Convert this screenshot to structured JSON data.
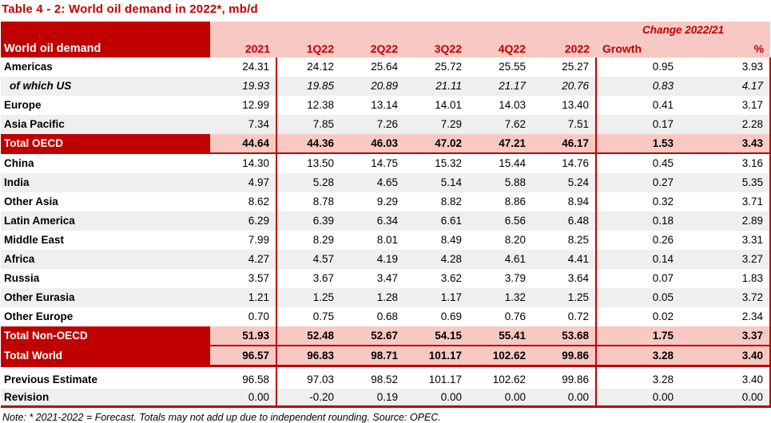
{
  "title": "Table 4 - 2: World oil demand in 2022*, mb/d",
  "table": {
    "corner_label": "World oil demand",
    "change_group_label": "Change 2022/21",
    "columns": [
      "2021",
      "1Q22",
      "2Q22",
      "3Q22",
      "4Q22",
      "2022",
      "Growth",
      "%"
    ],
    "rows": [
      {
        "label": "Americas",
        "style": "region",
        "bg": "",
        "values": [
          "24.31",
          "24.12",
          "25.64",
          "25.72",
          "25.55",
          "25.27",
          "0.95",
          "3.93"
        ]
      },
      {
        "label": "of which US",
        "style": "sub",
        "bg": "gray",
        "values": [
          "19.93",
          "19.85",
          "20.89",
          "21.11",
          "21.17",
          "20.76",
          "0.83",
          "4.17"
        ]
      },
      {
        "label": "Europe",
        "style": "region",
        "bg": "",
        "values": [
          "12.99",
          "12.38",
          "13.14",
          "14.01",
          "14.03",
          "13.40",
          "0.41",
          "3.17"
        ]
      },
      {
        "label": "Asia Pacific",
        "style": "region",
        "bg": "gray",
        "values": [
          "7.34",
          "7.85",
          "7.26",
          "7.29",
          "7.62",
          "7.51",
          "0.17",
          "2.28"
        ]
      },
      {
        "label": "Total OECD",
        "style": "total",
        "bg": "",
        "values": [
          "44.64",
          "44.36",
          "46.03",
          "47.02",
          "47.21",
          "46.17",
          "1.53",
          "3.43"
        ]
      },
      {
        "label": "China",
        "style": "region",
        "bg": "",
        "values": [
          "14.30",
          "13.50",
          "14.75",
          "15.32",
          "15.44",
          "14.76",
          "0.45",
          "3.16"
        ]
      },
      {
        "label": "India",
        "style": "region",
        "bg": "gray",
        "values": [
          "4.97",
          "5.28",
          "4.65",
          "5.14",
          "5.88",
          "5.24",
          "0.27",
          "5.35"
        ]
      },
      {
        "label": "Other Asia",
        "style": "region",
        "bg": "",
        "values": [
          "8.62",
          "8.78",
          "9.29",
          "8.82",
          "8.86",
          "8.94",
          "0.32",
          "3.71"
        ]
      },
      {
        "label": "Latin America",
        "style": "region",
        "bg": "gray",
        "values": [
          "6.29",
          "6.39",
          "6.34",
          "6.61",
          "6.56",
          "6.48",
          "0.18",
          "2.89"
        ]
      },
      {
        "label": "Middle East",
        "style": "region",
        "bg": "",
        "values": [
          "7.99",
          "8.29",
          "8.01",
          "8.49",
          "8.20",
          "8.25",
          "0.26",
          "3.31"
        ]
      },
      {
        "label": "Africa",
        "style": "region",
        "bg": "gray",
        "values": [
          "4.27",
          "4.57",
          "4.19",
          "4.28",
          "4.61",
          "4.41",
          "0.14",
          "3.27"
        ]
      },
      {
        "label": "Russia",
        "style": "region",
        "bg": "",
        "values": [
          "3.57",
          "3.67",
          "3.47",
          "3.62",
          "3.79",
          "3.64",
          "0.07",
          "1.83"
        ]
      },
      {
        "label": "Other Eurasia",
        "style": "region",
        "bg": "gray",
        "values": [
          "1.21",
          "1.25",
          "1.28",
          "1.17",
          "1.32",
          "1.25",
          "0.05",
          "3.72"
        ]
      },
      {
        "label": "Other Europe",
        "style": "region",
        "bg": "",
        "values": [
          "0.70",
          "0.75",
          "0.68",
          "0.69",
          "0.76",
          "0.72",
          "0.02",
          "2.34"
        ]
      },
      {
        "label": "Total Non-OECD",
        "style": "total",
        "bg": "",
        "values": [
          "51.93",
          "52.48",
          "52.67",
          "54.15",
          "55.41",
          "53.68",
          "1.75",
          "3.37"
        ]
      },
      {
        "label": "Total World",
        "style": "grand",
        "bg": "",
        "values": [
          "96.57",
          "96.83",
          "98.71",
          "101.17",
          "102.62",
          "99.86",
          "3.28",
          "3.40"
        ]
      },
      {
        "label": "Previous Estimate",
        "style": "estimate",
        "bg": "",
        "gap_before": true,
        "values": [
          "96.58",
          "97.03",
          "98.52",
          "101.17",
          "102.62",
          "99.86",
          "3.28",
          "3.40"
        ]
      },
      {
        "label": "Revision",
        "style": "revision",
        "bg": "gray",
        "values": [
          "0.00",
          "-0.20",
          "0.19",
          "0.00",
          "0.00",
          "0.00",
          "0.00",
          "0.00"
        ]
      }
    ]
  },
  "note": "Note: * 2021-2022 = Forecast. Totals may not add up due to independent rounding. Source: OPEC.",
  "colors": {
    "dark_red": "#C00000",
    "header_pink": "#F8C9C3",
    "stripe_gray": "#EFEFEF"
  }
}
